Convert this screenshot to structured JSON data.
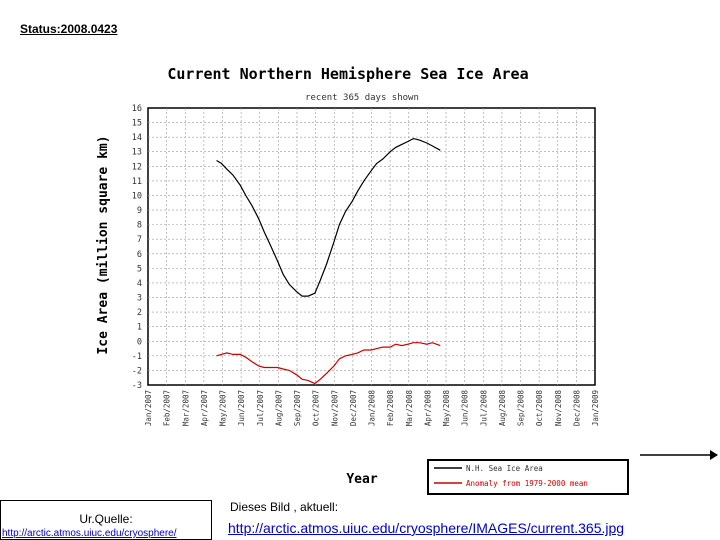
{
  "status": "Status:2008.0423",
  "source": {
    "label": "Ur.Quelle:",
    "url": "http://arctic.atmos.uiuc.edu/cryosphere/"
  },
  "current": {
    "label": "Dieses Bild , aktuell:",
    "url": "http://arctic.atmos.uiuc.edu/cryosphere/IMAGES/current.365.jpg"
  },
  "chart_data": {
    "type": "line",
    "title": "Current Northern Hemisphere Sea Ice Area",
    "subtitle": "recent 365 days shown",
    "xlabel": "Year",
    "ylabel": "Ice Area (million square km)",
    "ylim": [
      -3,
      16
    ],
    "yticks": [
      -3,
      -2,
      -1,
      0,
      1,
      2,
      3,
      4,
      5,
      6,
      7,
      8,
      9,
      10,
      11,
      12,
      13,
      14,
      15,
      16
    ],
    "x_ticks": [
      "Jan/2007",
      "Feb/2007",
      "Mar/2007",
      "Apr/2007",
      "May/2007",
      "Jun/2007",
      "Jul/2007",
      "Aug/2007",
      "Sep/2007",
      "Oct/2007",
      "Nov/2007",
      "Dec/2007",
      "Jan/2008",
      "Feb/2008",
      "Mar/2008",
      "Apr/2008",
      "May/2008",
      "Jun/2008",
      "Jul/2008",
      "Aug/2008",
      "Sep/2008",
      "Oct/2008",
      "Nov/2008",
      "Dec/2008",
      "Jan/2009"
    ],
    "grid": true,
    "legend_position": "bottom-right",
    "series": [
      {
        "name": "N.H. Sea Ice Area",
        "color": "#000000",
        "x": [
          "2007-04-23",
          "2007-05-01",
          "2007-05-10",
          "2007-05-20",
          "2007-06-01",
          "2007-06-10",
          "2007-06-20",
          "2007-07-01",
          "2007-07-10",
          "2007-07-20",
          "2007-08-01",
          "2007-08-10",
          "2007-08-20",
          "2007-09-01",
          "2007-09-10",
          "2007-09-20",
          "2007-10-01",
          "2007-10-10",
          "2007-10-20",
          "2007-11-01",
          "2007-11-10",
          "2007-11-20",
          "2007-12-01",
          "2007-12-10",
          "2007-12-20",
          "2008-01-01",
          "2008-01-10",
          "2008-01-20",
          "2008-02-01",
          "2008-02-10",
          "2008-02-20",
          "2008-03-01",
          "2008-03-10",
          "2008-03-20",
          "2008-04-01",
          "2008-04-10",
          "2008-04-23"
        ],
        "values": [
          12.4,
          12.2,
          11.8,
          11.4,
          10.7,
          10.0,
          9.3,
          8.4,
          7.5,
          6.6,
          5.5,
          4.6,
          3.9,
          3.4,
          3.1,
          3.1,
          3.3,
          4.2,
          5.3,
          6.8,
          8.0,
          8.9,
          9.6,
          10.3,
          11.0,
          11.7,
          12.2,
          12.5,
          13.0,
          13.3,
          13.5,
          13.7,
          13.9,
          13.8,
          13.6,
          13.4,
          13.1
        ]
      },
      {
        "name": "Anomaly from 1979-2000 mean",
        "color": "#cc0000",
        "x": [
          "2007-04-23",
          "2007-05-01",
          "2007-05-10",
          "2007-05-20",
          "2007-06-01",
          "2007-06-10",
          "2007-06-20",
          "2007-07-01",
          "2007-07-10",
          "2007-07-20",
          "2007-08-01",
          "2007-08-10",
          "2007-08-20",
          "2007-09-01",
          "2007-09-10",
          "2007-09-20",
          "2007-10-01",
          "2007-10-10",
          "2007-10-20",
          "2007-11-01",
          "2007-11-10",
          "2007-11-20",
          "2007-12-01",
          "2007-12-10",
          "2007-12-20",
          "2008-01-01",
          "2008-01-10",
          "2008-01-20",
          "2008-02-01",
          "2008-02-10",
          "2008-02-20",
          "2008-03-01",
          "2008-03-10",
          "2008-03-20",
          "2008-04-01",
          "2008-04-10",
          "2008-04-23"
        ],
        "values": [
          -1.0,
          -0.9,
          -0.8,
          -0.9,
          -0.9,
          -1.1,
          -1.4,
          -1.7,
          -1.8,
          -1.8,
          -1.8,
          -1.9,
          -2.0,
          -2.3,
          -2.6,
          -2.7,
          -2.9,
          -2.6,
          -2.2,
          -1.7,
          -1.2,
          -1.0,
          -0.9,
          -0.8,
          -0.6,
          -0.6,
          -0.5,
          -0.4,
          -0.4,
          -0.2,
          -0.3,
          -0.2,
          -0.1,
          -0.1,
          -0.2,
          -0.1,
          -0.3
        ]
      }
    ]
  }
}
